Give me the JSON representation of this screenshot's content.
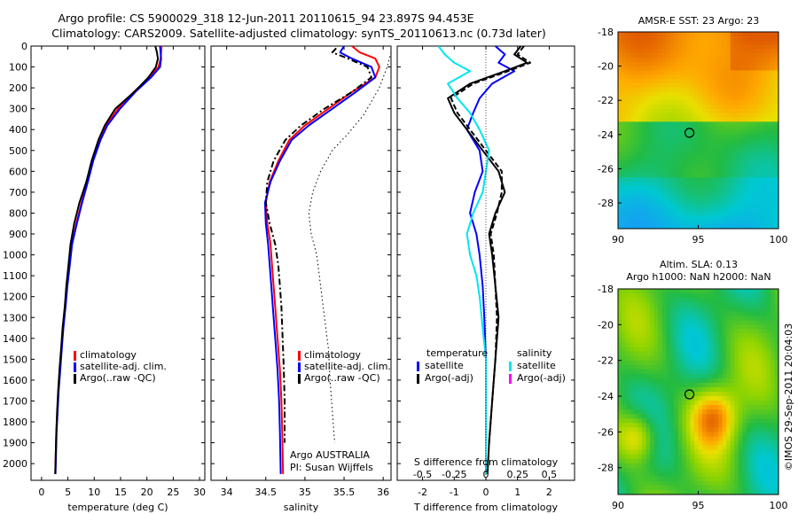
{
  "header": {
    "title_line1": "Argo profile: CS 5900029_318 12-Jun-2011 20110615_94 23.897S 94.453E",
    "title_line2": "Climatology: CARS2009. Satellite-adjusted climatology: synTS_20110613.nc (0.73d later)"
  },
  "colors": {
    "climatology": "#ff0000",
    "satellite": "#0000ff",
    "argo": "#000000",
    "satellite_salinity": "#00e5ee",
    "argo_salinity_adj": "#ff00ff"
  },
  "chart_data": [
    {
      "id": "temperature",
      "type": "line",
      "xlabel": "temperature (deg C)",
      "ylabel": "",
      "xlim": [
        -2,
        31
      ],
      "ylim": [
        2080,
        0
      ],
      "xticks": [
        0,
        5,
        10,
        15,
        20,
        25,
        30
      ],
      "yticks": [
        0,
        100,
        200,
        300,
        400,
        500,
        600,
        700,
        800,
        900,
        1000,
        1100,
        1200,
        1300,
        1400,
        1500,
        1600,
        1700,
        1800,
        1900,
        2000
      ],
      "legend": [
        "climatology",
        "satellite-adj. clim.",
        "Argo(..raw -QC)"
      ],
      "legend_placement": "lower-center",
      "series": [
        {
          "name": "climatology",
          "color": "#ff0000",
          "style": "solid",
          "x": [
            22.8,
            22.7,
            22.6,
            22.2,
            20.5,
            17.5,
            14.5,
            12.3,
            11,
            9.6,
            8.7,
            7.6,
            6.6,
            5.7,
            5.3,
            4.8,
            4.5,
            4.1,
            3.8,
            3.5,
            3.2,
            3.0,
            2.8,
            2.7,
            2.6
          ],
          "y": [
            0,
            30,
            60,
            100,
            150,
            220,
            300,
            380,
            450,
            550,
            650,
            750,
            850,
            950,
            1050,
            1150,
            1250,
            1350,
            1450,
            1550,
            1650,
            1750,
            1850,
            1950,
            2050
          ]
        },
        {
          "name": "satellite-adj. clim.",
          "color": "#0000ff",
          "style": "solid",
          "x": [
            22.5,
            22.6,
            22.7,
            22.5,
            20.8,
            17.8,
            14.9,
            12.5,
            11.2,
            9.8,
            8.8,
            7.7,
            6.7,
            5.8,
            5.35,
            4.9,
            4.55,
            4.15,
            3.85,
            3.55,
            3.25,
            3.05,
            2.85,
            2.75,
            2.65
          ],
          "y": [
            0,
            30,
            60,
            100,
            150,
            220,
            300,
            380,
            450,
            550,
            650,
            750,
            850,
            950,
            1050,
            1150,
            1250,
            1350,
            1450,
            1550,
            1650,
            1750,
            1850,
            1950,
            2050
          ]
        },
        {
          "name": "Argo(..raw -QC)",
          "color": "#000000",
          "style": "solid",
          "x": [
            21.6,
            21.9,
            22.1,
            21.7,
            20.3,
            17.6,
            14.0,
            12.0,
            10.8,
            9.5,
            8.5,
            7.2,
            6.2,
            5.5,
            5.1,
            4.7,
            4.4,
            4.0,
            3.7,
            3.4,
            3.15,
            2.95,
            2.8,
            2.7,
            2.6
          ],
          "y": [
            0,
            30,
            60,
            100,
            150,
            220,
            300,
            380,
            450,
            550,
            650,
            750,
            850,
            950,
            1050,
            1150,
            1250,
            1350,
            1450,
            1550,
            1650,
            1750,
            1850,
            1950,
            2050
          ]
        }
      ]
    },
    {
      "id": "salinity",
      "type": "line",
      "xlabel": "salinity",
      "ylabel": "",
      "xlim": [
        33.8,
        36.1
      ],
      "ylim": [
        2080,
        0
      ],
      "xticks": [
        34,
        34.5,
        35,
        35.5,
        36
      ],
      "legend": [
        "climatology",
        "satellite-adj. clim.",
        "Argo(..raw -QC)"
      ],
      "legend_placement": "lower-right",
      "annotations": [
        "Argo AUSTRALIA",
        "PI: Susan Wijffels"
      ],
      "series": [
        {
          "name": "climatology",
          "color": "#ff0000",
          "style": "solid",
          "x": [
            35.6,
            35.7,
            35.9,
            35.95,
            35.9,
            35.6,
            35.3,
            35.0,
            34.8,
            34.66,
            34.55,
            34.5,
            34.52,
            34.56,
            34.58,
            34.6,
            34.62,
            34.64,
            34.66,
            34.68,
            34.7,
            34.71,
            34.72
          ],
          "y": [
            0,
            30,
            60,
            100,
            150,
            220,
            300,
            380,
            450,
            550,
            650,
            750,
            850,
            950,
            1050,
            1150,
            1250,
            1350,
            1450,
            1550,
            1700,
            1850,
            2050
          ]
        },
        {
          "name": "satellite-adj. clim.",
          "color": "#0000ff",
          "style": "solid",
          "x": [
            35.5,
            35.45,
            35.6,
            35.85,
            35.9,
            35.65,
            35.35,
            35.05,
            34.83,
            34.68,
            34.56,
            34.49,
            34.5,
            34.53,
            34.55,
            34.57,
            34.59,
            34.61,
            34.63,
            34.65,
            34.67,
            34.68,
            34.69
          ],
          "y": [
            0,
            30,
            60,
            100,
            150,
            220,
            300,
            380,
            450,
            550,
            650,
            750,
            850,
            950,
            1050,
            1150,
            1250,
            1350,
            1450,
            1550,
            1700,
            1850,
            2050
          ]
        },
        {
          "name": "Argo(..raw -QC)",
          "color": "#000000",
          "style": "dashdot",
          "x": [
            35.4,
            35.35,
            35.55,
            35.8,
            35.85,
            35.6,
            35.25,
            34.95,
            34.75,
            34.6,
            34.52,
            34.5,
            34.55,
            34.62,
            34.66,
            34.68,
            34.7,
            34.71,
            34.72,
            34.73,
            34.74,
            34.74
          ],
          "y": [
            10,
            30,
            60,
            100,
            150,
            220,
            300,
            380,
            450,
            550,
            650,
            750,
            850,
            950,
            1050,
            1150,
            1250,
            1350,
            1450,
            1550,
            1700,
            1900
          ]
        },
        {
          "name": "",
          "color": "#000000",
          "style": "dotted",
          "x": [
            36.1,
            36.05,
            35.95,
            35.75,
            35.55,
            35.35,
            35.2,
            35.1,
            35.05,
            35.08,
            35.15,
            35.2,
            35.25,
            35.3,
            35.32,
            35.35,
            35.38
          ],
          "y": [
            30,
            100,
            200,
            330,
            420,
            500,
            600,
            700,
            800,
            900,
            1000,
            1150,
            1300,
            1450,
            1600,
            1750,
            1900
          ]
        }
      ]
    },
    {
      "id": "difference",
      "type": "line",
      "xlabel": "T difference from climatology",
      "top_axis_label": "S difference from climatology",
      "xlim": [
        -2.8,
        2.8
      ],
      "ylim": [
        2080,
        0
      ],
      "xticks": [
        -2,
        -1,
        0,
        1,
        2
      ],
      "xtick_labels": [
        "-2",
        "-1",
        "0",
        "1",
        "2"
      ],
      "sticks": [
        -0.5,
        -0.25,
        0,
        0.25,
        0.5
      ],
      "stick_labels": [
        "-0.5",
        "-0.25",
        "0",
        "0.25",
        "0.5"
      ],
      "legend_left_title": "temperature",
      "legend_right_title": "salinity",
      "legend": [
        "satellite",
        "Argo(-adj)",
        "satellite",
        "Argo(-adj)"
      ],
      "legend_placement": "lower-center",
      "series": [
        {
          "name": "satellite",
          "quantity": "temperature",
          "color": "#0000ff",
          "style": "solid",
          "x": [
            0.3,
            0.6,
            0.4,
            0.9,
            0.2,
            -0.2,
            -0.4,
            -0.6,
            -0.2,
            -0.1,
            -0.35,
            -0.5,
            -0.3,
            -0.2,
            -0.1,
            -0.05,
            0,
            0,
            0,
            0
          ],
          "y": [
            0,
            40,
            80,
            120,
            180,
            250,
            320,
            400,
            500,
            600,
            700,
            800,
            900,
            1000,
            1150,
            1300,
            1500,
            1700,
            1900,
            2050
          ]
        },
        {
          "name": "Argo(-adj)",
          "quantity": "temperature",
          "color": "#000000",
          "style": "solid",
          "x": [
            1.1,
            0.9,
            1.3,
            0.6,
            -0.5,
            -1.2,
            -1.0,
            -0.6,
            -0.1,
            0.4,
            0.6,
            0.3,
            0.1,
            0.2,
            0.3,
            0.4,
            0.3,
            0.2,
            0.1,
            0.05
          ],
          "y": [
            0,
            40,
            80,
            120,
            180,
            250,
            320,
            400,
            500,
            600,
            700,
            800,
            900,
            1000,
            1150,
            1300,
            1500,
            1700,
            1900,
            2050
          ]
        },
        {
          "name": "Argo(-adj)",
          "quantity": "temperature",
          "color": "#000000",
          "style": "dashed",
          "x": [
            1.2,
            1.0,
            1.4,
            0.7,
            -0.4,
            -1.1,
            -0.9,
            -0.5,
            0,
            0.5,
            0.5,
            0.35,
            0.15,
            0.25,
            0.3,
            0.35,
            0.3,
            0.2,
            0.1
          ],
          "y": [
            0,
            40,
            80,
            120,
            180,
            250,
            320,
            400,
            500,
            600,
            700,
            800,
            900,
            1000,
            1150,
            1300,
            1500,
            1700,
            1900
          ]
        },
        {
          "name": "satellite",
          "quantity": "salinity",
          "color": "#00e5ee",
          "style": "solid",
          "x": [
            -1.5,
            -1.3,
            -1.0,
            -0.5,
            -1.2,
            -0.9,
            -0.5,
            -0.2,
            0.1,
            0.0,
            -0.1,
            -0.4,
            -0.6,
            -0.5,
            -0.3,
            -0.2,
            -0.1,
            0,
            0,
            0,
            0
          ],
          "y": [
            0,
            40,
            80,
            120,
            180,
            250,
            320,
            400,
            500,
            600,
            700,
            800,
            900,
            1000,
            1100,
            1200,
            1350,
            1500,
            1700,
            1900,
            2050
          ]
        }
      ]
    },
    {
      "id": "sst_map",
      "type": "heatmap",
      "title": "AMSR-E SST: 23 Argo: 23",
      "xlim": [
        90,
        100
      ],
      "ylim": [
        -29.5,
        -18
      ],
      "xticks": [
        90,
        95,
        100
      ],
      "yticks": [
        -18,
        -20,
        -22,
        -24,
        -26,
        -28
      ],
      "marker": {
        "lon": 94.45,
        "lat": -23.9
      }
    },
    {
      "id": "sla_map",
      "type": "heatmap",
      "title": "Altim. SLA: 0.13",
      "subtitle": "Argo h1000: NaN h2000: NaN",
      "xlim": [
        90,
        100
      ],
      "ylim": [
        -29.5,
        -18
      ],
      "xticks": [
        90,
        95,
        100
      ],
      "yticks": [
        -18,
        -20,
        -22,
        -24,
        -26,
        -28
      ],
      "marker": {
        "lon": 94.45,
        "lat": -23.9
      }
    }
  ],
  "footer": {
    "credit": "©IMOS 29-Sep-2011 20:04:03"
  }
}
